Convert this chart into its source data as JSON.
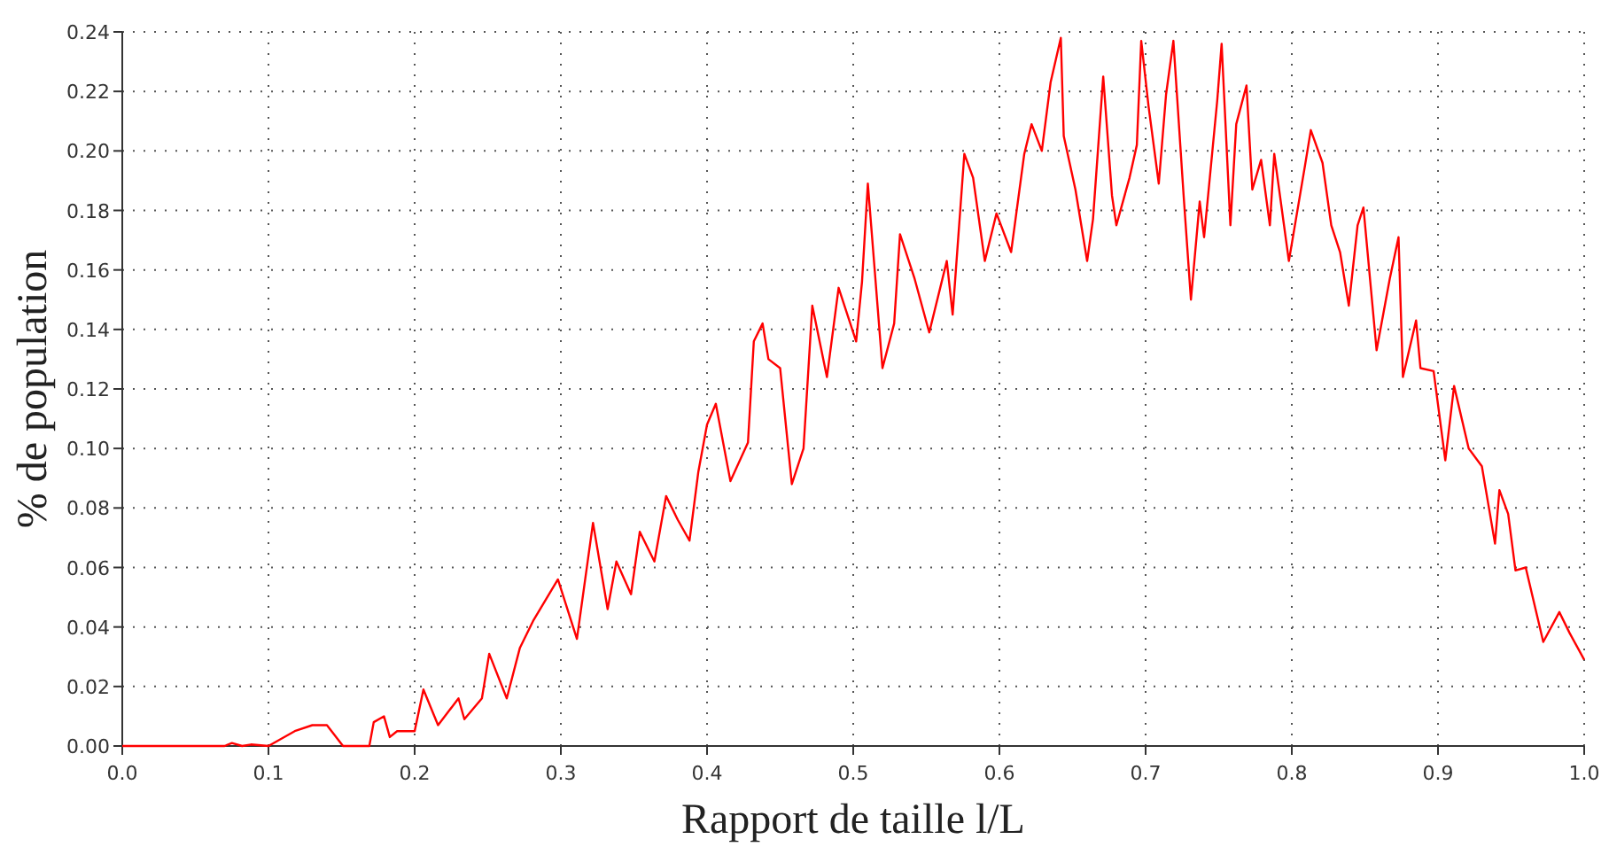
{
  "chart_data": {
    "type": "line",
    "xlabel": "Rapport de taille l/L",
    "ylabel": "% de population",
    "xlim": [
      0,
      1
    ],
    "ylim": [
      0,
      0.24
    ],
    "xticks": [
      {
        "value": 0,
        "label": "0.0"
      },
      0.1,
      0.2,
      0.3,
      0.4,
      0.5,
      0.6,
      0.7,
      0.8,
      0.9,
      {
        "value": 1,
        "label": "1.0"
      }
    ],
    "yticks": [
      {
        "value": 0,
        "label": "0.00"
      },
      {
        "value": 0.02,
        "label": "0.02"
      },
      {
        "value": 0.04,
        "label": "0.04"
      },
      {
        "value": 0.06,
        "label": "0.06"
      },
      {
        "value": 0.08,
        "label": "0.08"
      },
      {
        "value": 0.1,
        "label": "0.10"
      },
      {
        "value": 0.12,
        "label": "0.12"
      },
      {
        "value": 0.14,
        "label": "0.14"
      },
      {
        "value": 0.16,
        "label": "0.16"
      },
      {
        "value": 0.18,
        "label": "0.18"
      },
      {
        "value": 0.2,
        "label": "0.20"
      },
      {
        "value": 0.22,
        "label": "0.22"
      },
      {
        "value": 0.24,
        "label": "0.24"
      }
    ],
    "grid": true,
    "marker": "none",
    "line_style": "solid",
    "series": [
      {
        "color": "#ff0000",
        "x": [
          0,
          0.07,
          0.075,
          0.082,
          0.088,
          0.1,
          0.118,
          0.13,
          0.14,
          0.151,
          0.169,
          0.172,
          0.179,
          0.183,
          0.188,
          0.2,
          0.206,
          0.216,
          0.23,
          0.234,
          0.246,
          0.251,
          0.263,
          0.272,
          0.281,
          0.298,
          0.311,
          0.322,
          0.332,
          0.338,
          0.348,
          0.354,
          0.364,
          0.372,
          0.38,
          0.388,
          0.394,
          0.4,
          0.406,
          0.416,
          0.428,
          0.432,
          0.438,
          0.442,
          0.45,
          0.458,
          0.466,
          0.472,
          0.482,
          0.49,
          0.502,
          0.506,
          0.51,
          0.52,
          0.528,
          0.532,
          0.542,
          0.552,
          0.564,
          0.568,
          0.576,
          0.582,
          0.59,
          0.598,
          0.608,
          0.617,
          0.622,
          0.629,
          0.635,
          0.642,
          0.644,
          0.652,
          0.66,
          0.664,
          0.671,
          0.677,
          0.68,
          0.689,
          0.694,
          0.697,
          0.702,
          0.709,
          0.714,
          0.719,
          0.726,
          0.731,
          0.737,
          0.74,
          0.749,
          0.752,
          0.758,
          0.762,
          0.769,
          0.773,
          0.779,
          0.785,
          0.788,
          0.798,
          0.809,
          0.813,
          0.821,
          0.827,
          0.833,
          0.839,
          0.845,
          0.849,
          0.858,
          0.867,
          0.873,
          0.876,
          0.885,
          0.888,
          0.897,
          0.905,
          0.911,
          0.921,
          0.93,
          0.939,
          0.942,
          0.948,
          0.953,
          0.96,
          0.972,
          0.983,
          0.99,
          1.0
        ],
        "values": [
          0,
          0,
          0.001,
          0,
          0.0005,
          0,
          0.005,
          0.007,
          0.007,
          0,
          0,
          0.008,
          0.01,
          0.003,
          0.005,
          0.005,
          0.019,
          0.007,
          0.016,
          0.009,
          0.016,
          0.031,
          0.016,
          0.033,
          0.042,
          0.056,
          0.036,
          0.075,
          0.046,
          0.062,
          0.051,
          0.072,
          0.062,
          0.084,
          0.076,
          0.069,
          0.092,
          0.108,
          0.115,
          0.089,
          0.102,
          0.136,
          0.142,
          0.13,
          0.127,
          0.088,
          0.1,
          0.148,
          0.124,
          0.154,
          0.136,
          0.156,
          0.189,
          0.127,
          0.142,
          0.172,
          0.157,
          0.139,
          0.163,
          0.145,
          0.199,
          0.191,
          0.163,
          0.179,
          0.166,
          0.199,
          0.209,
          0.2,
          0.223,
          0.238,
          0.205,
          0.187,
          0.163,
          0.177,
          0.225,
          0.185,
          0.175,
          0.191,
          0.202,
          0.237,
          0.215,
          0.189,
          0.219,
          0.237,
          0.185,
          0.15,
          0.183,
          0.171,
          0.217,
          0.236,
          0.175,
          0.209,
          0.222,
          0.187,
          0.197,
          0.175,
          0.199,
          0.163,
          0.195,
          0.207,
          0.196,
          0.175,
          0.166,
          0.148,
          0.175,
          0.181,
          0.133,
          0.157,
          0.171,
          0.124,
          0.143,
          0.127,
          0.126,
          0.096,
          0.121,
          0.1,
          0.094,
          0.068,
          0.086,
          0.078,
          0.059,
          0.06,
          0.035,
          0.045,
          0.038,
          0.029
        ]
      }
    ]
  }
}
